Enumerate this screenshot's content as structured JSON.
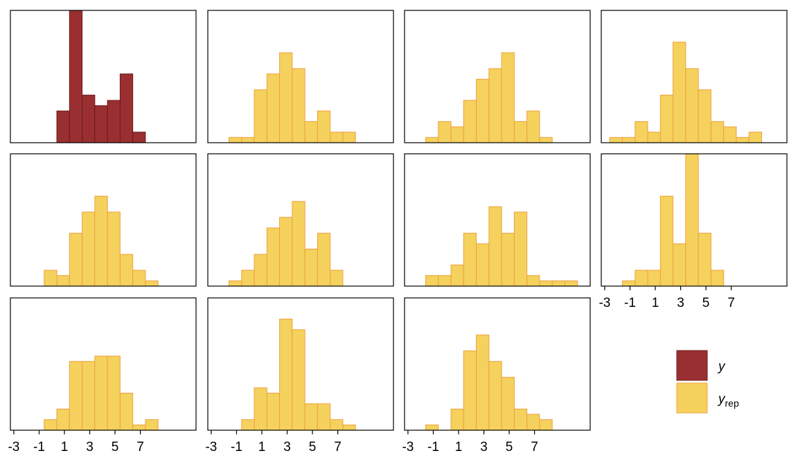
{
  "chart_data": [
    {
      "type": "histogram",
      "bins": [
        -2.6,
        -1.6,
        -0.6,
        0.4,
        1.4,
        2.4,
        3.4,
        4.4,
        5.4,
        6.4,
        7.4,
        8.4,
        9.4,
        10.4
      ],
      "counts": [
        0,
        0,
        0,
        3,
        12.5,
        4.5,
        3.5,
        4,
        6.5,
        1,
        0,
        0,
        0
      ],
      "color": "#9a2f31",
      "edgecolor": "#6b1a1c",
      "xlim": [
        -3.27,
        11.4
      ],
      "ylim": [
        0,
        12.5
      ]
    },
    {
      "type": "histogram",
      "bins": [
        -2.6,
        -1.6,
        -0.6,
        0.4,
        1.4,
        2.4,
        3.4,
        4.4,
        5.4,
        6.4,
        7.4,
        8.4,
        9.4,
        10.4
      ],
      "counts": [
        0,
        0.5,
        0.5,
        5,
        6.5,
        8.5,
        7,
        2,
        3,
        1,
        1,
        0,
        0
      ],
      "color": "#f5d15e",
      "edgecolor": "#eda13f",
      "xlim": [
        -3.27,
        11.4
      ],
      "ylim": [
        0,
        12.5
      ]
    },
    {
      "type": "histogram",
      "bins": [
        -2.6,
        -1.6,
        -0.6,
        0.4,
        1.4,
        2.4,
        3.4,
        4.4,
        5.4,
        6.4,
        7.4,
        8.4,
        9.4,
        10.4
      ],
      "counts": [
        0,
        0.5,
        2,
        1.5,
        4,
        6,
        7,
        8.5,
        2,
        3,
        0.5,
        0,
        0
      ],
      "color": "#f5d15e",
      "edgecolor": "#eda13f",
      "xlim": [
        -3.27,
        11.4
      ],
      "ylim": [
        0,
        12.5
      ]
    },
    {
      "type": "histogram",
      "bins": [
        -2.6,
        -1.6,
        -0.6,
        0.4,
        1.4,
        2.4,
        3.4,
        4.4,
        5.4,
        6.4,
        7.4,
        8.4,
        9.4,
        10.4
      ],
      "counts": [
        0.5,
        0.5,
        2,
        1,
        4.5,
        9.5,
        7,
        5,
        2,
        1.5,
        0.5,
        1,
        0
      ],
      "color": "#f5d15e",
      "edgecolor": "#eda13f",
      "xlim": [
        -3.27,
        11.4
      ],
      "ylim": [
        0,
        12.5
      ]
    },
    {
      "type": "histogram",
      "bins": [
        -2.6,
        -1.6,
        -0.6,
        0.4,
        1.4,
        2.4,
        3.4,
        4.4,
        5.4,
        6.4,
        7.4,
        8.4,
        9.4,
        10.4
      ],
      "counts": [
        0,
        0,
        1.5,
        1,
        5,
        7,
        8.5,
        7,
        3,
        1.5,
        0.5,
        0,
        0
      ],
      "color": "#f5d15e",
      "edgecolor": "#eda13f",
      "xlim": [
        -3.27,
        11.4
      ],
      "ylim": [
        0,
        12.5
      ]
    },
    {
      "type": "histogram",
      "bins": [
        -2.6,
        -1.6,
        -0.6,
        0.4,
        1.4,
        2.4,
        3.4,
        4.4,
        5.4,
        6.4,
        7.4,
        8.4,
        9.4,
        10.4
      ],
      "counts": [
        0,
        0.5,
        1.5,
        3,
        5.5,
        6.5,
        8,
        3.5,
        5,
        1.5,
        0,
        0,
        0
      ],
      "color": "#f5d15e",
      "edgecolor": "#eda13f",
      "xlim": [
        -3.27,
        11.4
      ],
      "ylim": [
        0,
        12.5
      ]
    },
    {
      "type": "histogram",
      "bins": [
        -2.6,
        -1.6,
        -0.6,
        0.4,
        1.4,
        2.4,
        3.4,
        4.4,
        5.4,
        6.4,
        7.4,
        8.4,
        9.4,
        10.4
      ],
      "counts": [
        0,
        1,
        1,
        2,
        5,
        4,
        7.5,
        5,
        7,
        1,
        0.5,
        0.5,
        0.5
      ],
      "color": "#f5d15e",
      "edgecolor": "#eda13f",
      "xlim": [
        -3.27,
        11.4
      ],
      "ylim": [
        0,
        12.5
      ]
    },
    {
      "type": "histogram",
      "bins": [
        -2.6,
        -1.6,
        -0.6,
        0.4,
        1.4,
        2.4,
        3.4,
        4.4,
        5.4,
        6.4,
        7.4,
        8.4,
        9.4,
        10.4
      ],
      "counts": [
        0,
        0.5,
        1.5,
        1.5,
        8.5,
        4,
        12.5,
        5,
        1.5,
        0,
        0,
        0,
        0
      ],
      "color": "#f5d15e",
      "edgecolor": "#eda13f",
      "xlim": [
        -3.27,
        11.4
      ],
      "ylim": [
        0,
        12.5
      ],
      "xticks": [
        -3,
        -1,
        1,
        3,
        5,
        7
      ]
    },
    {
      "type": "histogram",
      "bins": [
        -2.6,
        -1.6,
        -0.6,
        0.4,
        1.4,
        2.4,
        3.4,
        4.4,
        5.4,
        6.4,
        7.4,
        8.4,
        9.4,
        10.4
      ],
      "counts": [
        0,
        0,
        1,
        2,
        6.5,
        6.5,
        7,
        7,
        3.5,
        0.5,
        1,
        0,
        0
      ],
      "color": "#f5d15e",
      "edgecolor": "#eda13f",
      "xlim": [
        -3.27,
        11.4
      ],
      "ylim": [
        0,
        12.5
      ],
      "xticks": [
        -3,
        -1,
        1,
        3,
        5,
        7
      ]
    },
    {
      "type": "histogram",
      "bins": [
        -2.6,
        -1.6,
        -0.6,
        0.4,
        1.4,
        2.4,
        3.4,
        4.4,
        5.4,
        6.4,
        7.4,
        8.4,
        9.4,
        10.4
      ],
      "counts": [
        0,
        0,
        1,
        4,
        3.5,
        10.5,
        9.5,
        2.5,
        2.5,
        1,
        0.5,
        0,
        0
      ],
      "color": "#f5d15e",
      "edgecolor": "#eda13f",
      "xlim": [
        -3.27,
        11.4
      ],
      "ylim": [
        0,
        12.5
      ],
      "xticks": [
        -3,
        -1,
        1,
        3,
        5,
        7
      ]
    },
    {
      "type": "histogram",
      "bins": [
        -2.6,
        -1.6,
        -0.6,
        0.4,
        1.4,
        2.4,
        3.4,
        4.4,
        5.4,
        6.4,
        7.4,
        8.4,
        9.4,
        10.4
      ],
      "counts": [
        0,
        0.5,
        0,
        2,
        7.5,
        9,
        6.5,
        5,
        2,
        1.5,
        1,
        0,
        0
      ],
      "color": "#f5d15e",
      "edgecolor": "#eda13f",
      "xlim": [
        -3.27,
        11.4
      ],
      "ylim": [
        0,
        12.5
      ],
      "xticks": [
        -3,
        -1,
        1,
        3,
        5,
        7
      ]
    }
  ],
  "legend": {
    "position": "right",
    "entries": [
      {
        "name": "y",
        "color": "#9a2f31",
        "edgecolor": "#6b1a1c"
      },
      {
        "name": "y",
        "subscript": "rep",
        "color": "#f5d15e",
        "edgecolor": "#eda13f"
      }
    ]
  }
}
